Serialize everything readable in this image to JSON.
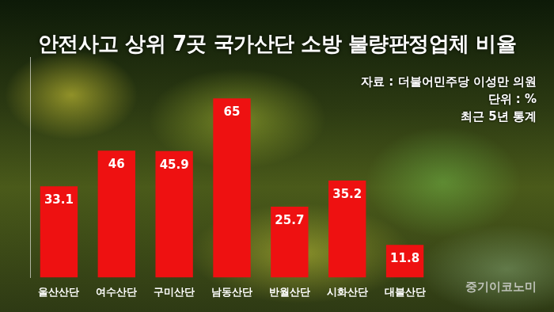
{
  "chart_data": {
    "type": "bar",
    "title": "안전사고 상위 7곳 국가산단 소방 불량판정업체 비율",
    "annotations": [
      "자료 : 더불어민주당 이성만 의원",
      "단위 : %",
      "최근 5년 통계"
    ],
    "watermark": "중기이코노미",
    "categories": [
      "울산산단",
      "여수산단",
      "구미산단",
      "남동산단",
      "반월산단",
      "시화산단",
      "대불산단"
    ],
    "values": [
      33.1,
      46,
      45.9,
      65,
      25.7,
      35.2,
      11.8
    ],
    "color": "#ee1111",
    "ylim": [
      0,
      80
    ],
    "grid": false,
    "data_labels": true,
    "tick_labels": "x"
  }
}
